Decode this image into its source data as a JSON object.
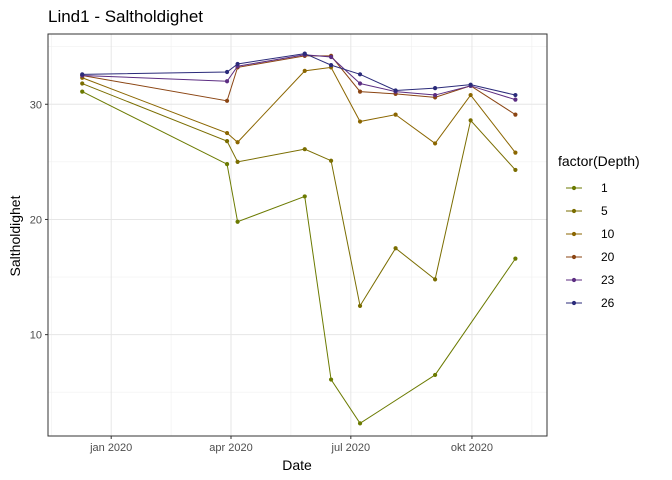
{
  "chart_data": {
    "type": "line",
    "title": "Lind1  -  Saltholdighet",
    "xlabel": "Date",
    "ylabel": "Saltholdighet",
    "x_ticks": [
      {
        "date": "2020-01-01",
        "label": "jan 2020"
      },
      {
        "date": "2020-04-01",
        "label": "apr 2020"
      },
      {
        "date": "2020-07-01",
        "label": "jul 2020"
      },
      {
        "date": "2020-10-01",
        "label": "okt 2020"
      }
    ],
    "y_ticks": [
      10,
      20,
      30
    ],
    "xlim": [
      "2019-11-14",
      "2020-11-27"
    ],
    "ylim": [
      1.2,
      36.1
    ],
    "grid": true,
    "legend": {
      "title": "factor(Depth)",
      "position": "right"
    },
    "x": [
      "2019-12-10",
      "2020-03-29",
      "2020-04-06",
      "2020-05-27",
      "2020-06-16",
      "2020-07-08",
      "2020-08-04",
      "2020-09-03",
      "2020-09-30",
      "2020-11-03"
    ],
    "series": [
      {
        "name": "1",
        "color": "#6b7a00",
        "values": [
          31.1,
          24.8,
          19.8,
          22.0,
          6.1,
          2.3,
          null,
          6.5,
          null,
          16.6
        ]
      },
      {
        "name": "5",
        "color": "#7a6d00",
        "values": [
          31.8,
          26.8,
          25.0,
          26.1,
          25.1,
          12.5,
          17.5,
          14.8,
          28.6,
          24.3
        ]
      },
      {
        "name": "10",
        "color": "#8b6600",
        "values": [
          32.3,
          27.5,
          26.7,
          32.9,
          33.2,
          28.5,
          29.1,
          26.6,
          30.8,
          25.8
        ]
      },
      {
        "name": "20",
        "color": "#8b4513",
        "values": [
          32.5,
          30.3,
          33.2,
          34.2,
          34.2,
          31.1,
          30.9,
          30.6,
          31.6,
          29.1
        ]
      },
      {
        "name": "23",
        "color": "#5c2d82",
        "values": [
          32.5,
          32.0,
          33.3,
          34.3,
          34.1,
          31.8,
          31.1,
          30.8,
          31.6,
          30.4
        ]
      },
      {
        "name": "26",
        "color": "#2b2b7a",
        "values": [
          32.6,
          32.8,
          33.5,
          34.4,
          33.4,
          32.6,
          31.2,
          31.4,
          31.7,
          30.8
        ]
      }
    ]
  }
}
